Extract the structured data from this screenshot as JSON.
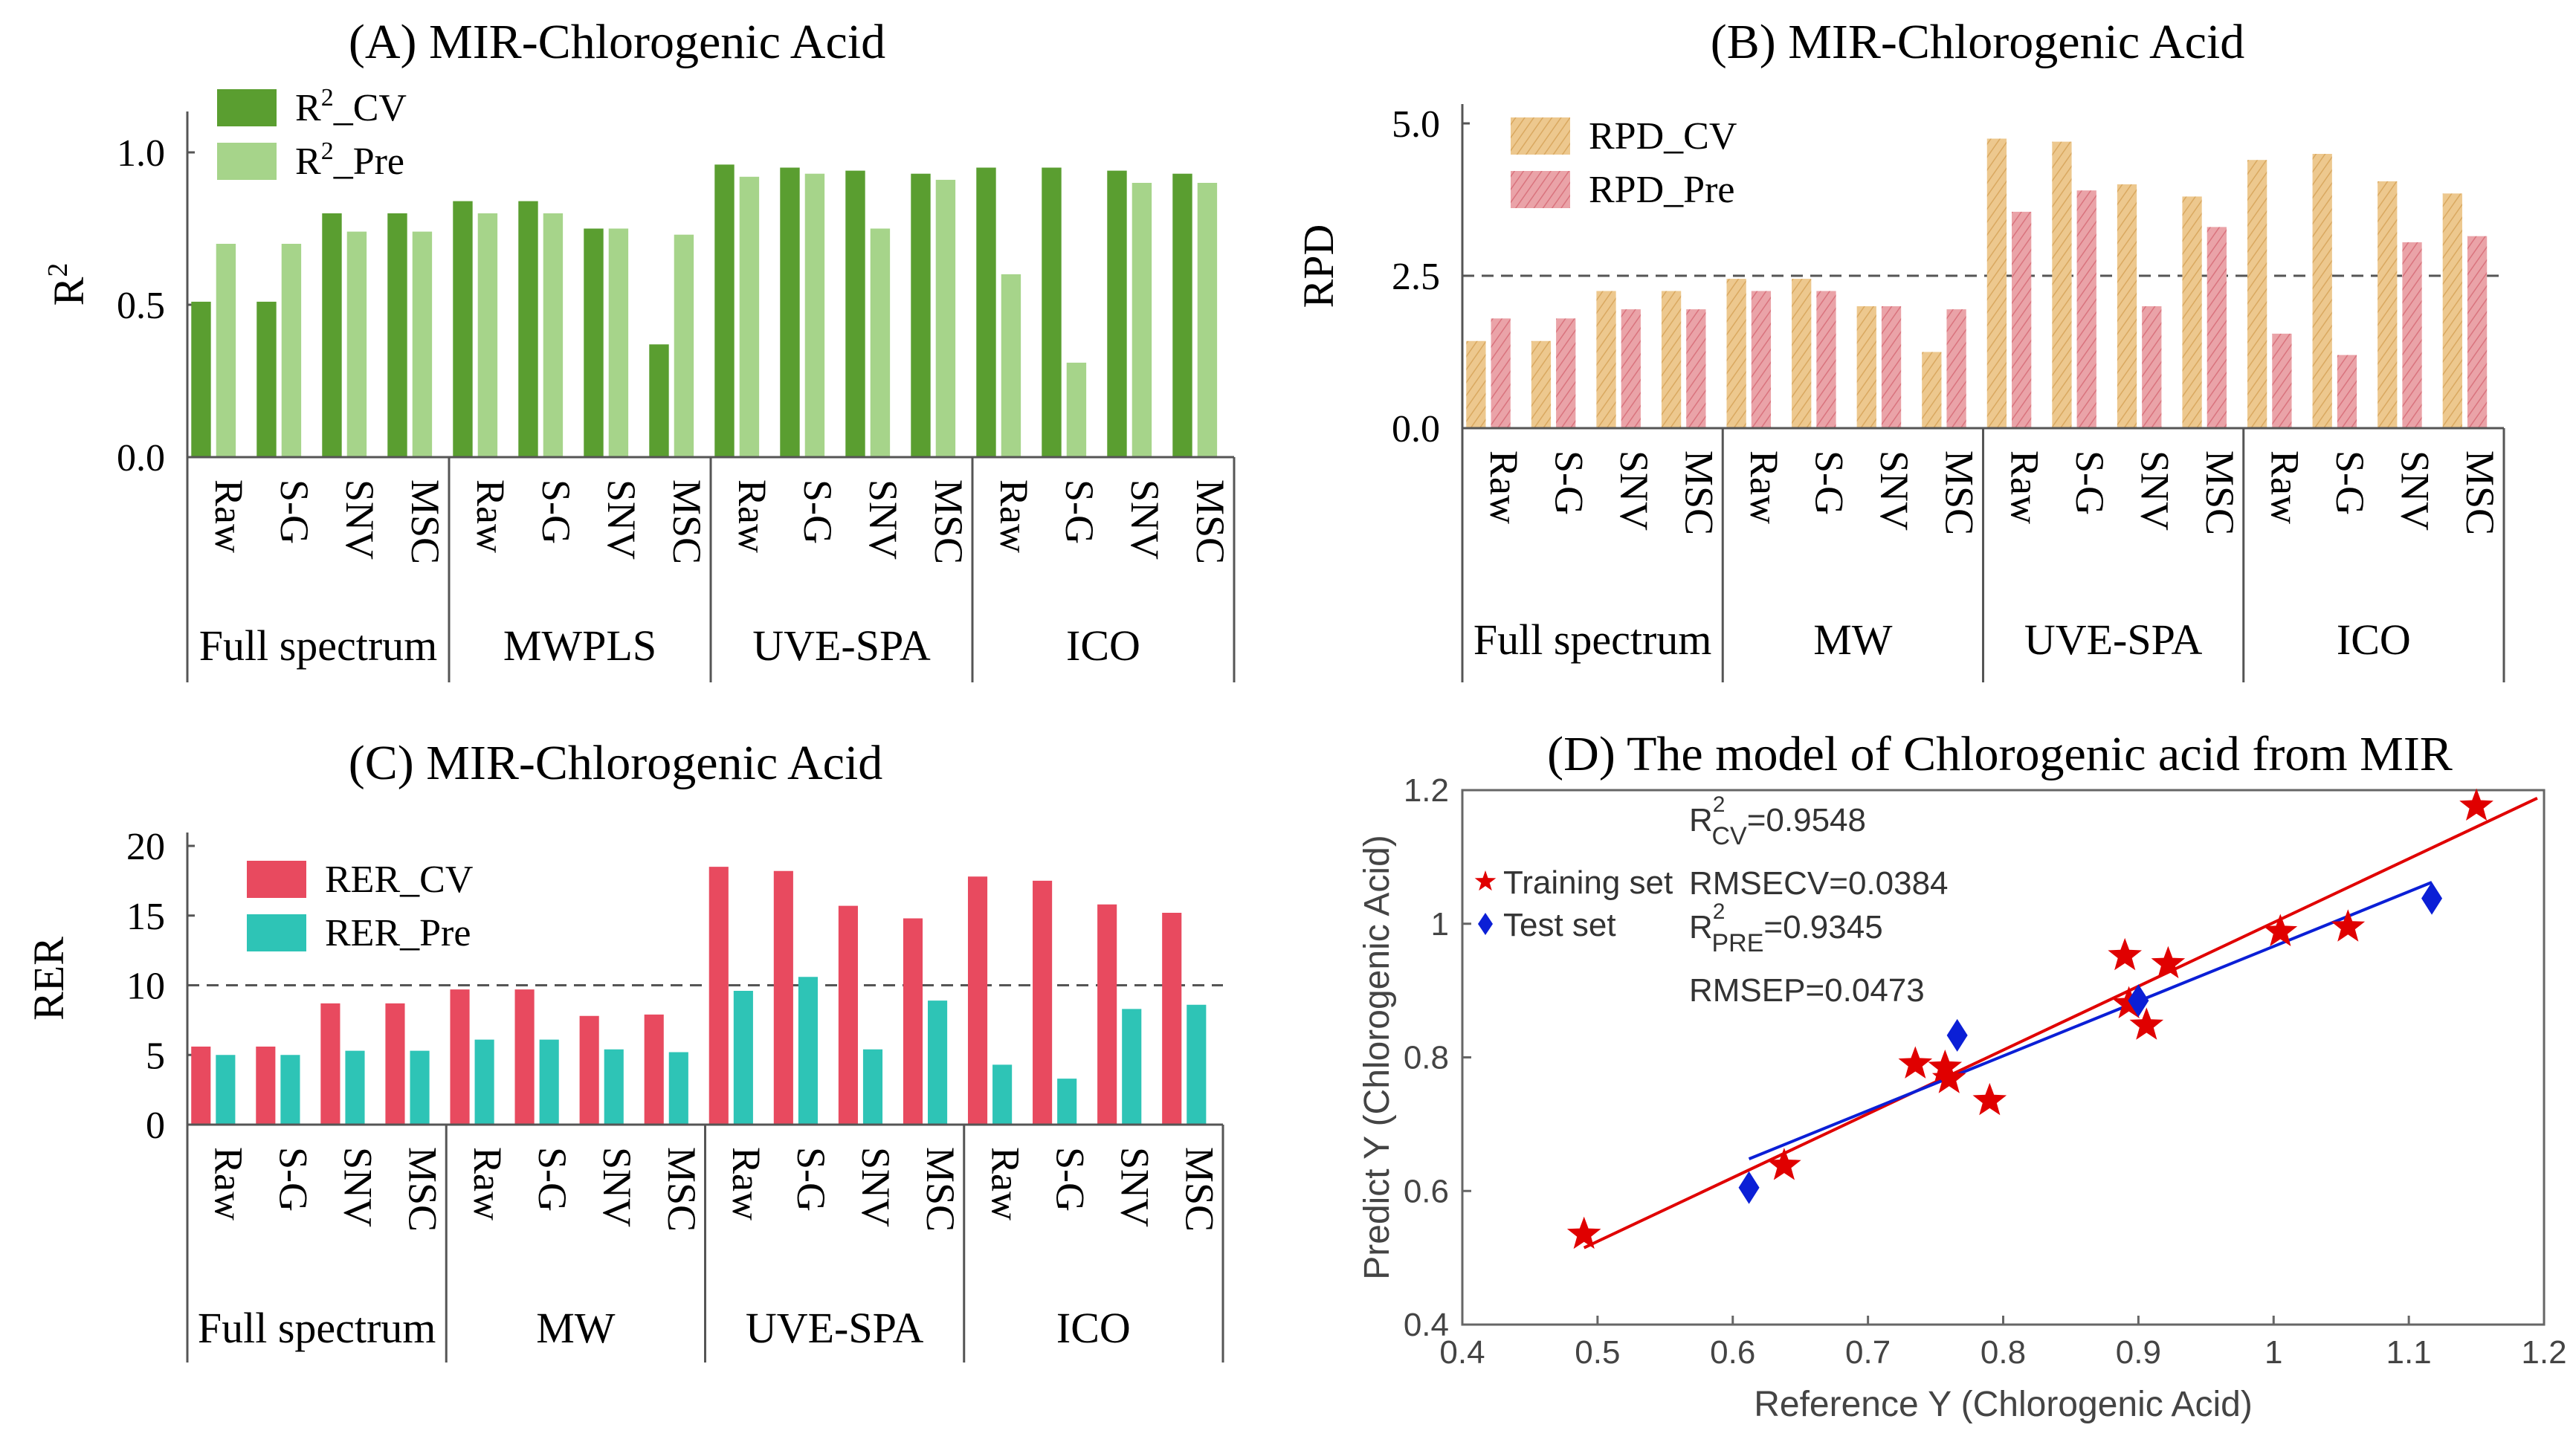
{
  "chart_data": [
    {
      "id": "A",
      "type": "bar",
      "title": "(A)  MIR-Chlorogenic Acid",
      "ylabel": "R2",
      "ylabel_main": "R",
      "ylabel_sup": "2",
      "ylim": [
        0,
        1.2
      ],
      "yticks": [
        0.0,
        0.5,
        1.0
      ],
      "ytick_labels": [
        "0.0",
        "0.5",
        "1.0"
      ],
      "group_labels": [
        "Full spectrum",
        "MWPLS",
        "UVE-SPA",
        "ICO"
      ],
      "method_labels": [
        "Raw",
        "S-G",
        "SNV",
        "MSC"
      ],
      "legend_labels": [
        "R2_CV",
        "R2_Pre"
      ],
      "legend": [
        {
          "main": "R",
          "sup": "2",
          "rest": "_CV"
        },
        {
          "main": "R",
          "sup": "2",
          "rest": "_Pre"
        }
      ],
      "series": [
        {
          "name": "R2_CV",
          "color": "#5a9e30",
          "values": [
            0.51,
            0.51,
            0.8,
            0.8,
            0.84,
            0.84,
            0.75,
            0.37,
            0.96,
            0.95,
            0.94,
            0.93,
            0.95,
            0.95,
            0.94,
            0.93
          ]
        },
        {
          "name": "R2_Pre",
          "color": "#a6d48a",
          "values": [
            0.7,
            0.7,
            0.74,
            0.74,
            0.8,
            0.8,
            0.75,
            0.73,
            0.92,
            0.93,
            0.75,
            0.91,
            0.6,
            0.31,
            0.9,
            0.9
          ]
        }
      ]
    },
    {
      "id": "B",
      "type": "bar",
      "title": "(B)    MIR-Chlorogenic Acid",
      "ylabel": "RPD",
      "ylim": [
        0,
        5.0
      ],
      "yticks": [
        0.0,
        2.5,
        5.0
      ],
      "ytick_labels": [
        "0.0",
        "2.5",
        "5.0"
      ],
      "reference_line": 2.5,
      "group_labels": [
        "Full spectrum",
        "MW",
        "UVE-SPA",
        "ICO"
      ],
      "method_labels": [
        "Raw",
        "S-G",
        "SNV",
        "MSC"
      ],
      "legend_labels": [
        "RPD_CV",
        "RPD_Pre"
      ],
      "series": [
        {
          "name": "RPD_CV",
          "color": "#edc88e",
          "values": [
            1.43,
            1.43,
            2.25,
            2.25,
            2.45,
            2.45,
            2.0,
            1.25,
            4.75,
            4.7,
            4.0,
            3.8,
            4.4,
            4.5,
            4.05,
            3.85
          ]
        },
        {
          "name": "RPD_Pre",
          "color": "#eaa3a8",
          "values": [
            1.8,
            1.8,
            1.95,
            1.95,
            2.25,
            2.25,
            2.0,
            1.95,
            3.55,
            3.9,
            2.0,
            3.3,
            1.55,
            1.2,
            3.05,
            3.15
          ]
        }
      ]
    },
    {
      "id": "C",
      "type": "bar",
      "title": "(C)  MIR-Chlorogenic Acid",
      "ylabel": "RER",
      "ylim": [
        0,
        20
      ],
      "yticks": [
        0,
        5,
        10,
        15,
        20
      ],
      "ytick_labels": [
        "0",
        "5",
        "10",
        "15",
        "20"
      ],
      "reference_line": 10,
      "group_labels": [
        "Full spectrum",
        "MW",
        "UVE-SPA",
        "ICO"
      ],
      "method_labels": [
        "Raw",
        "S-G",
        "SNV",
        "MSC"
      ],
      "legend_labels": [
        "RER_CV",
        "RER_Pre"
      ],
      "series": [
        {
          "name": "RER_CV",
          "color": "#e84a5f",
          "values": [
            5.6,
            5.6,
            8.7,
            8.7,
            9.7,
            9.7,
            7.8,
            7.9,
            18.5,
            18.2,
            15.7,
            14.8,
            17.8,
            17.5,
            15.8,
            15.2
          ]
        },
        {
          "name": "RER_Pre",
          "color": "#2ec4b6",
          "values": [
            5.0,
            5.0,
            5.3,
            5.3,
            6.1,
            6.1,
            5.4,
            5.2,
            9.6,
            10.6,
            5.4,
            8.9,
            4.3,
            3.3,
            8.3,
            8.6
          ]
        }
      ]
    },
    {
      "id": "D",
      "type": "scatter",
      "title": "(D) The model of Chlorogenic acid from MIR",
      "xlabel": "Reference Y (Chlorogenic Acid)",
      "ylabel": "Predict Y (Chlorogenic Acid)",
      "xlim": [
        0.4,
        1.2
      ],
      "ylim": [
        0.4,
        1.2
      ],
      "xticks": [
        0.4,
        0.5,
        0.6,
        0.7,
        0.8,
        0.9,
        1.0,
        1.1,
        1.2
      ],
      "xtick_labels": [
        "0.4",
        "0.5",
        "0.6",
        "0.7",
        "0.8",
        "0.9",
        "1",
        "1.1",
        "1.2"
      ],
      "yticks": [
        0.4,
        0.6,
        0.8,
        1.0,
        1.2
      ],
      "ytick_labels": [
        "0.4",
        "0.6",
        "0.8",
        "1",
        "1.2"
      ],
      "legend": [
        "Training set",
        "Test set"
      ],
      "stats_text": [
        "R2CV=0.9548",
        "RMSECV=0.0384",
        "R2PRE=0.9345",
        "RMSEP=0.0473"
      ],
      "stats": [
        {
          "main": "R",
          "sup": "2",
          "sub": "CV",
          "value": "=0.9548"
        },
        {
          "main": "RMSECV=0.0384"
        },
        {
          "main": "R",
          "sup": "2",
          "sub": "PRE",
          "value": "=0.9345"
        },
        {
          "main": "RMSEP=0.0473"
        }
      ],
      "training_color": "#e00000",
      "test_color": "#0b1fd6",
      "training": [
        [
          0.49,
          0.535
        ],
        [
          0.638,
          0.638
        ],
        [
          0.735,
          0.79
        ],
        [
          0.757,
          0.785
        ],
        [
          0.76,
          0.768
        ],
        [
          0.79,
          0.735
        ],
        [
          0.89,
          0.952
        ],
        [
          0.893,
          0.88
        ],
        [
          0.906,
          0.848
        ],
        [
          0.922,
          0.94
        ],
        [
          1.005,
          0.988
        ],
        [
          1.055,
          0.995
        ],
        [
          1.15,
          1.176
        ]
      ],
      "test": [
        [
          0.612,
          0.605
        ],
        [
          0.766,
          0.833
        ],
        [
          0.9,
          0.885
        ],
        [
          1.117,
          1.038
        ]
      ],
      "training_fit": [
        [
          0.49,
          0.515
        ],
        [
          1.195,
          1.188
        ]
      ],
      "test_fit": [
        [
          0.612,
          0.648
        ],
        [
          1.117,
          1.062
        ]
      ]
    }
  ]
}
